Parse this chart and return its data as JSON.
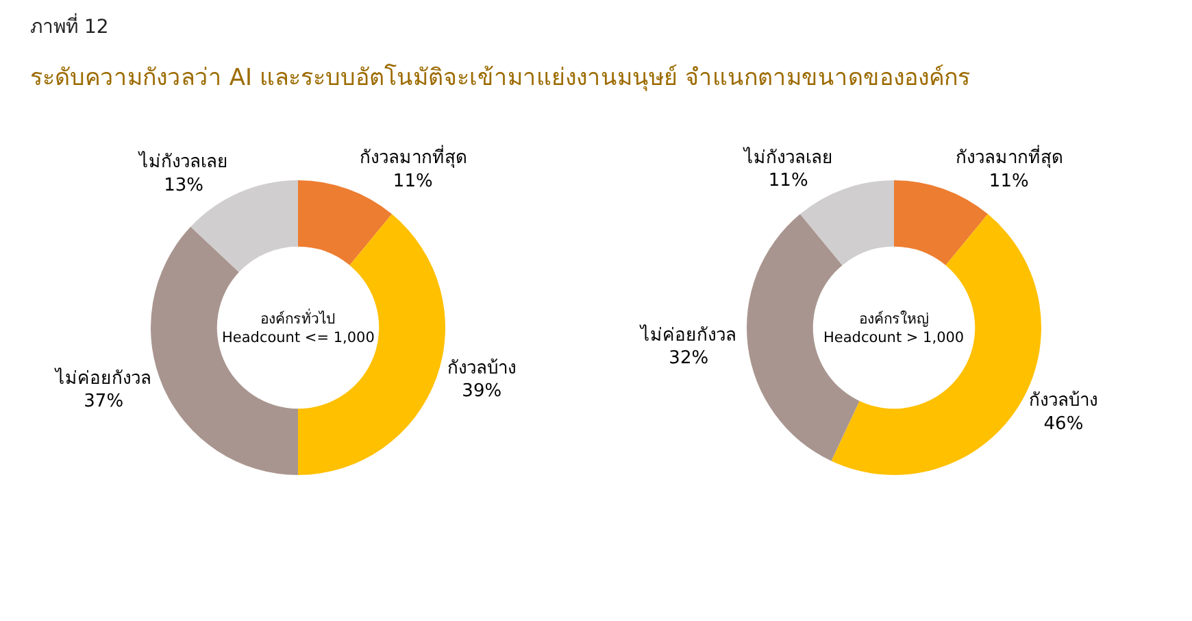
{
  "chart_data": [
    {
      "type": "donut",
      "title": "ระดับความกังวลว่า AI และระบบอัตโนมัติจะเข้ามาแย่งงานมนุษย์ จำแนกตามขนาดขององค์กร",
      "annotations": [
        "ภาพที่ 12"
      ],
      "subtitle": "องค์กรทั่วไป\nHeadcount <= 1,000",
      "categories": [
        "กังวลมากที่สุด",
        "กังวลบ้าง",
        "ไม่ค่อยกังวล",
        "ไม่กังวลเลย"
      ],
      "values": [
        11,
        39,
        37,
        13
      ],
      "value_labels": [
        "11%",
        "39%",
        "37%",
        "13%"
      ],
      "colors": [
        "#ed7d31",
        "#ffc000",
        "#a9958f",
        "#d0cece"
      ]
    },
    {
      "type": "donut",
      "subtitle": "องค์กรใหญ่\nHeadcount > 1,000",
      "categories": [
        "กังวลมากที่สุด",
        "กังวลบ้าง",
        "ไม่ค่อยกังวล",
        "ไม่กังวลเลย"
      ],
      "values": [
        11,
        46,
        32,
        11
      ],
      "value_labels": [
        "11%",
        "46%",
        "32%",
        "11%"
      ],
      "colors": [
        "#ed7d31",
        "#ffc000",
        "#a9958f",
        "#d0cece"
      ]
    }
  ]
}
